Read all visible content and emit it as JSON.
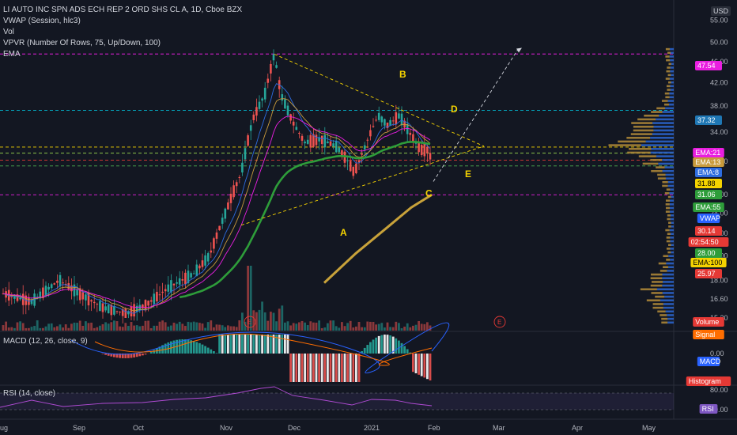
{
  "legend": {
    "symbol": "LI AUTO INC SPN ADS ECH REP 2 ORD SHS CL A, 1D, Cboe BZX",
    "vwap": "VWAP (Session, hlc3)",
    "vol": "Vol",
    "vpvr": "VPVR (Number Of Rows, 75, Up/Down, 100)",
    "ema": "EMA"
  },
  "macd_label": "MACD (12, 26, close, 9)",
  "rsi_label": "RSI (14, close)",
  "currency": "USD",
  "currency_top": "6",
  "x_labels": [
    "ug",
    "Sep",
    "Oct",
    "Nov",
    "Dec",
    "2021",
    "Feb",
    "Mar",
    "Apr",
    "May"
  ],
  "price_ticks": [
    "55.00",
    "50.00",
    "46.00",
    "42.00",
    "38.00",
    "34.00",
    "30.00",
    "26.00",
    "24.00",
    "22.00",
    "20.00",
    "18.00",
    "16.60",
    "15.30"
  ],
  "macd_ticks": [
    "0.00"
  ],
  "rsi_ticks": [
    "80.00",
    "40.00"
  ],
  "tags": [
    {
      "text": "47.54",
      "bg": "#e91ee0",
      "fg": "#ffffff"
    },
    {
      "text": "37.32",
      "bg": "#1f77b4",
      "fg": "#ffffff"
    },
    {
      "text": "EMA:21",
      "bg": "#e91ee0",
      "fg": "#ffffff"
    },
    {
      "text": "EMA:13",
      "bg": "#c89b3c",
      "fg": "#ffffff"
    },
    {
      "text": "EMA:8",
      "bg": "#2d6cdf",
      "fg": "#ffffff"
    },
    {
      "text": "31.88",
      "bg": "#f5d300",
      "fg": "#000000"
    },
    {
      "text": "31.06",
      "bg": "#2e9d3a",
      "fg": "#ffffff"
    },
    {
      "text": "EMA:55",
      "bg": "#2e9d3a",
      "fg": "#ffffff"
    },
    {
      "text": "VWAP",
      "bg": "#2962ff",
      "fg": "#ffffff"
    },
    {
      "text": "30.14",
      "bg": "#e53935",
      "fg": "#ffffff"
    },
    {
      "text": "02:54:50",
      "bg": "#e53935",
      "fg": "#ffffff"
    },
    {
      "text": "28.00",
      "bg": "#2e9d3a",
      "fg": "#ffffff"
    },
    {
      "text": "EMA:100",
      "bg": "#f5d300",
      "fg": "#000000"
    },
    {
      "text": "25.97",
      "bg": "#e53935",
      "fg": "#ffffff"
    },
    {
      "text": "Volume",
      "bg": "#e53935",
      "fg": "#ffffff"
    },
    {
      "text": "Signal",
      "bg": "#ff6d00",
      "fg": "#ffffff"
    },
    {
      "text": "MACD",
      "bg": "#2962ff",
      "fg": "#ffffff"
    },
    {
      "text": "Histogram",
      "bg": "#e53935",
      "fg": "#ffffff"
    },
    {
      "text": "RSI",
      "bg": "#7e57c2",
      "fg": "#ffffff"
    }
  ],
  "wave_labels": [
    "A",
    "B",
    "C",
    "D",
    "E"
  ],
  "earnings_marker": "E",
  "colors": {
    "up": "#26a69a",
    "down": "#ef5350",
    "ema8": "#2d6cdf",
    "ema13": "#c89b3c",
    "ema21": "#e91ee0",
    "ema55": "#2e9d3a",
    "ema100": "#c8a23a",
    "fib_magenta": "#e91ee0",
    "fib_cyan": "#00bcd4",
    "triangle": "#f5d300"
  },
  "chart_data": {
    "type": "line",
    "title": "LI AUTO INC SPN ADS ECH REP 2 ORD SHS CL A, 1D, Cboe BZX",
    "x": [
      "Aug",
      "Sep",
      "Oct",
      "Nov",
      "Dec",
      "2021",
      "Feb"
    ],
    "series": [
      {
        "name": "",
        "values": [
          17.0,
          16.5,
          15.8,
          20.5,
          38.0,
          31.5,
          31.8
        ]
      },
      {
        "name": "EMA:55",
        "values": [
          null,
          15.6,
          16.0,
          19.5,
          27.0,
          30.5,
          31.06
        ]
      },
      {
        "name": "EMA:100",
        "values": [
          null,
          null,
          null,
          17.8,
          22.0,
          25.0,
          25.97
        ]
      }
    ],
    "levels": [
      47.54,
      37.32,
      31.88,
      30.14,
      25.97
    ],
    "ylim": [
      14.5,
      56
    ],
    "log_scale": true,
    "grid": false
  }
}
